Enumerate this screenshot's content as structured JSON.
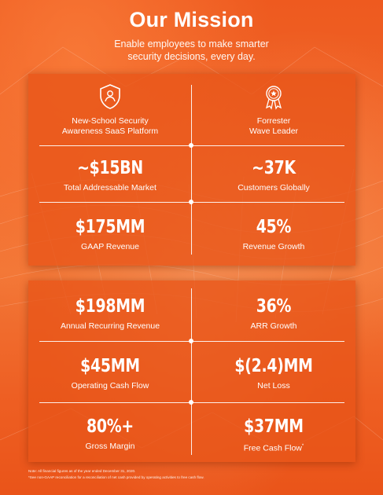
{
  "header": {
    "title": "Our Mission",
    "subtitle_line1": "Enable employees to make smarter",
    "subtitle_line2": "security decisions, every day."
  },
  "top_panel": {
    "platform": {
      "icon": "shield-person-icon",
      "line1": "New-School Security",
      "line2": "Awareness SaaS Platform"
    },
    "forrester": {
      "icon": "award-ribbon-icon",
      "line1": "Forrester",
      "line2": "Wave Leader"
    },
    "market": {
      "value": "~$15BN",
      "label": "Total Addressable Market"
    },
    "customers": {
      "value": "~37K",
      "label": "Customers Globally"
    },
    "revenue": {
      "value": "$175MM",
      "label": "GAAP Revenue"
    },
    "revenue_growth": {
      "value": "45%",
      "label": "Revenue Growth"
    }
  },
  "bottom_panel": {
    "arr": {
      "value": "$198MM",
      "label": "Annual Recurring Revenue"
    },
    "arr_growth": {
      "value": "36%",
      "label": "ARR Growth"
    },
    "operating_cash": {
      "value": "$45MM",
      "label": "Operating Cash Flow"
    },
    "net_loss": {
      "value": "$(2.4)MM",
      "label": "Net Loss"
    },
    "gross_margin": {
      "value": "80%+",
      "label": "Gross Margin"
    },
    "free_cash": {
      "value": "$37MM",
      "label": "Free Cash Flow",
      "marker": "*"
    }
  },
  "footnotes": {
    "note1": "Note: All financial figures as of the year ended December 31, 2020.",
    "note2": "*See non-GAAP reconciliation for a reconciliation of net cash provided by operating activities to free cash flow."
  },
  "colors": {
    "background": "#ee5f23",
    "panel": "#e85418",
    "text": "#ffffff"
  }
}
